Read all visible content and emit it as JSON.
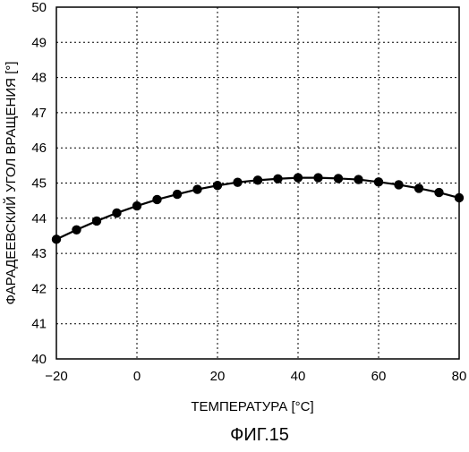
{
  "chart_data": {
    "type": "line",
    "title": "",
    "figure_label": "ФИГ.15",
    "xlabel": "ТЕМПЕРАТУРА  [°C]",
    "ylabel": "ФАРАДЕЕВСКИЙ УГОЛ ВРАЩЕНИЯ  [°]",
    "xlim": [
      -20,
      80
    ],
    "ylim": [
      40,
      50
    ],
    "x_ticks": [
      -20,
      0,
      20,
      40,
      60,
      80
    ],
    "y_ticks": [
      40,
      41,
      42,
      43,
      44,
      45,
      46,
      47,
      48,
      49,
      50
    ],
    "x_tick_labels": [
      "−20",
      "0",
      "20",
      "40",
      "60",
      "80"
    ],
    "y_tick_labels": [
      "40",
      "41",
      "42",
      "43",
      "44",
      "45",
      "46",
      "47",
      "48",
      "49",
      "50"
    ],
    "grid": true,
    "legend": "none",
    "series": [
      {
        "x": [
          -20,
          -15,
          -10,
          -5,
          0,
          5,
          10,
          15,
          20,
          25,
          30,
          35,
          40,
          45,
          50,
          55,
          60,
          65,
          70,
          75,
          80
        ],
        "y": [
          43.4,
          43.67,
          43.92,
          44.15,
          44.35,
          44.53,
          44.68,
          44.82,
          44.93,
          45.02,
          45.08,
          45.12,
          45.15,
          45.15,
          45.13,
          45.1,
          45.03,
          44.95,
          44.85,
          44.73,
          44.58
        ],
        "marker": "circle",
        "color": "#000000"
      }
    ]
  }
}
